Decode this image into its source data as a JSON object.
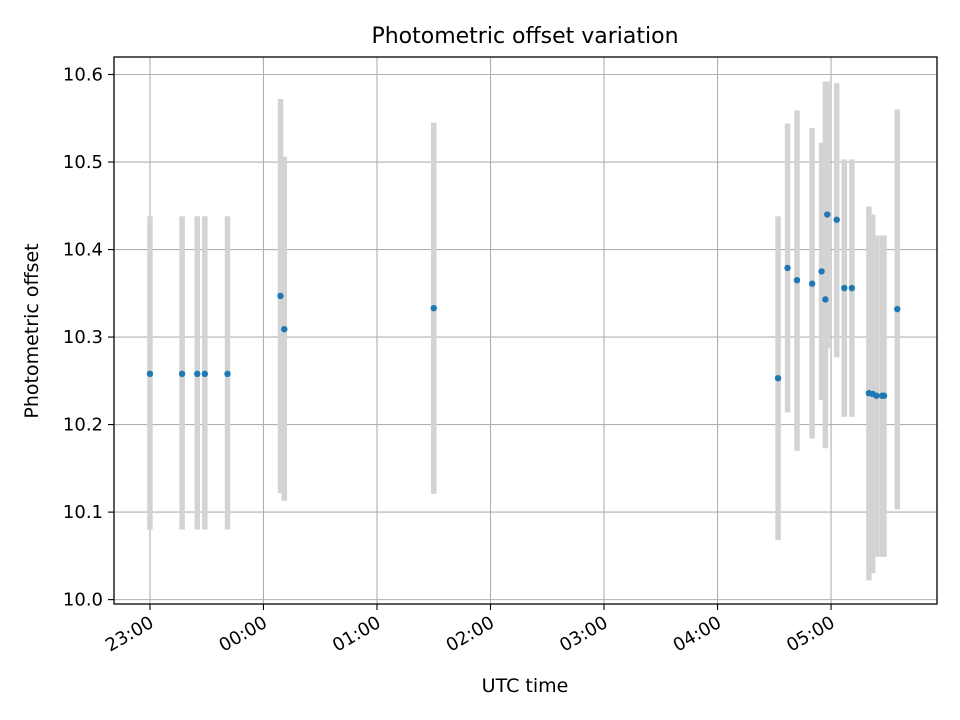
{
  "chart_data": {
    "type": "scatter",
    "title": "Photometric offset variation",
    "xlabel": "UTC time",
    "ylabel": "Photometric offset",
    "x_ticks": [
      "23:00",
      "00:00",
      "01:00",
      "02:00",
      "03:00",
      "04:00",
      "05:00"
    ],
    "y_ticks": [
      "10.0",
      "10.1",
      "10.2",
      "10.3",
      "10.4",
      "10.5",
      "10.6"
    ],
    "xlim": [
      "22:41",
      "05:56"
    ],
    "ylim": [
      9.995,
      10.62
    ],
    "grid": true,
    "legend": "none",
    "errorbar_color": "#d3d3d3",
    "point_color": "#1f77b4",
    "points": [
      {
        "x": "23:00",
        "y": 10.258,
        "ylow": 10.08,
        "yhigh": 10.438
      },
      {
        "x": "23:17",
        "y": 10.258,
        "ylow": 10.08,
        "yhigh": 10.438
      },
      {
        "x": "23:25",
        "y": 10.258,
        "ylow": 10.08,
        "yhigh": 10.438
      },
      {
        "x": "23:29",
        "y": 10.258,
        "ylow": 10.08,
        "yhigh": 10.438
      },
      {
        "x": "23:41",
        "y": 10.258,
        "ylow": 10.08,
        "yhigh": 10.438
      },
      {
        "x": "00:09",
        "y": 10.347,
        "ylow": 10.122,
        "yhigh": 10.572
      },
      {
        "x": "00:11",
        "y": 10.309,
        "ylow": 10.113,
        "yhigh": 10.506
      },
      {
        "x": "01:30",
        "y": 10.333,
        "ylow": 10.121,
        "yhigh": 10.545
      },
      {
        "x": "04:32",
        "y": 10.253,
        "ylow": 10.068,
        "yhigh": 10.438
      },
      {
        "x": "04:37",
        "y": 10.379,
        "ylow": 10.214,
        "yhigh": 10.544
      },
      {
        "x": "04:42",
        "y": 10.365,
        "ylow": 10.17,
        "yhigh": 10.559
      },
      {
        "x": "04:50",
        "y": 10.361,
        "ylow": 10.184,
        "yhigh": 10.539
      },
      {
        "x": "04:55",
        "y": 10.375,
        "ylow": 10.228,
        "yhigh": 10.522
      },
      {
        "x": "04:57",
        "y": 10.343,
        "ylow": 10.173,
        "yhigh": 10.592
      },
      {
        "x": "04:58",
        "y": 10.44,
        "ylow": 10.287,
        "yhigh": 10.592
      },
      {
        "x": "05:03",
        "y": 10.434,
        "ylow": 10.277,
        "yhigh": 10.59
      },
      {
        "x": "05:07",
        "y": 10.356,
        "ylow": 10.209,
        "yhigh": 10.503
      },
      {
        "x": "05:11",
        "y": 10.356,
        "ylow": 10.209,
        "yhigh": 10.503
      },
      {
        "x": "05:20",
        "y": 10.236,
        "ylow": 10.022,
        "yhigh": 10.449
      },
      {
        "x": "05:22",
        "y": 10.235,
        "ylow": 10.03,
        "yhigh": 10.44
      },
      {
        "x": "05:24",
        "y": 10.233,
        "ylow": 10.049,
        "yhigh": 10.416
      },
      {
        "x": "05:27",
        "y": 10.233,
        "ylow": 10.049,
        "yhigh": 10.416
      },
      {
        "x": "05:28",
        "y": 10.233,
        "ylow": 10.049,
        "yhigh": 10.416
      },
      {
        "x": "05:35",
        "y": 10.332,
        "ylow": 10.103,
        "yhigh": 10.56
      }
    ]
  }
}
